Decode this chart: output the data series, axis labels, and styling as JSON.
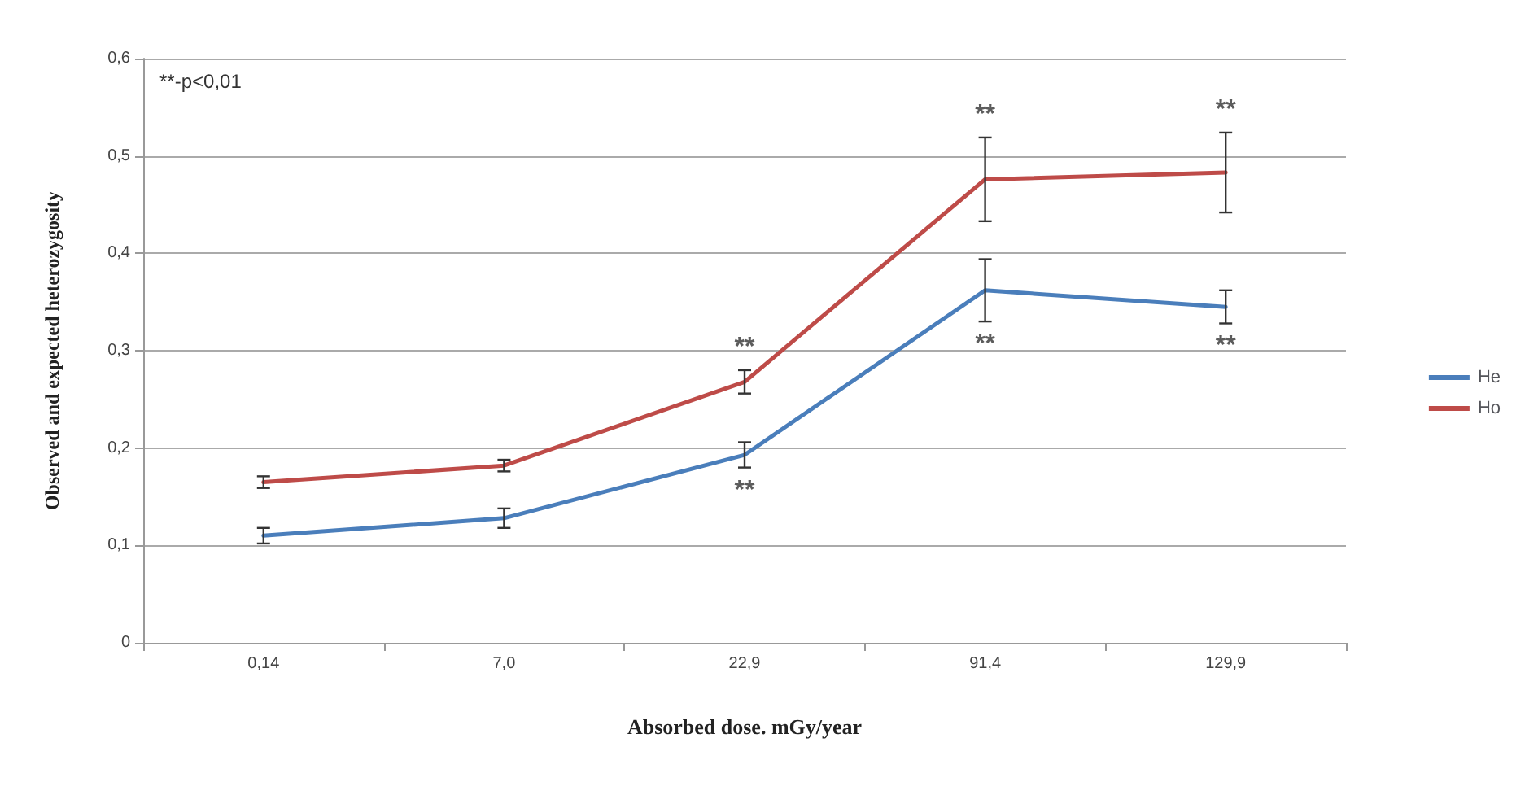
{
  "chart_data": {
    "type": "line",
    "xlabel": "Absorbed dose. mGy/year",
    "ylabel": "Observed and expected heterozygosity",
    "categories": [
      "0,14",
      "7,0",
      "22,9",
      "91,4",
      "129,9"
    ],
    "series": [
      {
        "name": "He",
        "color": "#4a7ebb",
        "values": [
          0.11,
          0.128,
          0.193,
          0.362,
          0.345
        ],
        "errors": [
          0.008,
          0.01,
          0.013,
          0.032,
          0.017
        ]
      },
      {
        "name": "Ho",
        "color": "#be4b48",
        "values": [
          0.165,
          0.182,
          0.268,
          0.476,
          0.483
        ],
        "errors": [
          0.006,
          0.006,
          0.012,
          0.043,
          0.041
        ]
      }
    ],
    "ylim": [
      0,
      0.6
    ],
    "yticks": [
      0,
      {
        "value": 0.1,
        "label": "0,1"
      },
      {
        "value": 0.2,
        "label": "0,2"
      },
      {
        "value": 0.3,
        "label": "0,3"
      },
      {
        "value": 0.4,
        "label": "0,4"
      },
      {
        "value": 0.5,
        "label": "0,5"
      },
      {
        "value": 0.6,
        "label": "0,6"
      }
    ],
    "grid": "y",
    "legend": "right",
    "marker": "none",
    "line_style": "solid",
    "annotations": [
      "**-p<0,01",
      {
        "text": "**",
        "x": "22,9",
        "y": 0.268
      },
      {
        "text": "**",
        "x": "22,9",
        "y": 0.193
      },
      {
        "text": "**",
        "x": "91,4",
        "y": 0.476
      },
      {
        "text": "**",
        "x": "91,4",
        "y": 0.362
      },
      {
        "text": "**",
        "x": "129,9",
        "y": 0.483
      },
      {
        "text": "**",
        "x": "129,9",
        "y": 0.345
      }
    ]
  }
}
